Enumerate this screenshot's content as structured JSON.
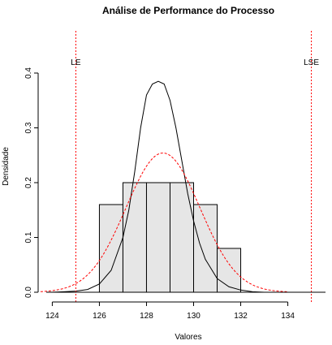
{
  "chart_data": {
    "type": "bar",
    "title": "Análise de Performance do Processo",
    "xlabel": "Valores",
    "ylabel": "Densidade",
    "xlim": [
      123.4,
      135.6
    ],
    "ylim": [
      0,
      0.4
    ],
    "x_ticks": [
      124,
      126,
      128,
      130,
      132,
      134
    ],
    "y_ticks": [
      0.0,
      0.1,
      0.2,
      0.3,
      0.4
    ],
    "x_tick_labels": [
      "124",
      "126",
      "128",
      "130",
      "132",
      "134"
    ],
    "y_tick_labels": [
      "0.0",
      "0.1",
      "0.2",
      "0.3",
      "0.4"
    ],
    "histogram": {
      "bins": [
        [
          126,
          127
        ],
        [
          127,
          128
        ],
        [
          128,
          129
        ],
        [
          129,
          130
        ],
        [
          130,
          131
        ],
        [
          131,
          132
        ]
      ],
      "density": [
        0.16,
        0.2,
        0.2,
        0.2,
        0.16,
        0.08
      ],
      "fill_color": "#e6e6e6",
      "edge_color": "#000000"
    },
    "density_curve": {
      "color": "#000000",
      "x": [
        124.0,
        124.5,
        125.0,
        125.5,
        126.0,
        126.5,
        127.0,
        127.25,
        127.5,
        127.75,
        128.0,
        128.25,
        128.5,
        128.75,
        129.0,
        129.25,
        129.5,
        129.75,
        130.0,
        130.25,
        130.5,
        131.0,
        131.5,
        132.0,
        132.5,
        133.0,
        133.5
      ],
      "y": [
        0.0,
        0.001,
        0.002,
        0.005,
        0.015,
        0.04,
        0.1,
        0.15,
        0.22,
        0.3,
        0.36,
        0.38,
        0.385,
        0.38,
        0.35,
        0.3,
        0.24,
        0.18,
        0.13,
        0.09,
        0.06,
        0.025,
        0.01,
        0.004,
        0.001,
        0.0,
        0.0
      ]
    },
    "normal_curve": {
      "color": "#ff0000",
      "mean": 128.7,
      "sd": 1.57,
      "x_range": [
        123.5,
        134.0
      ]
    },
    "spec_limits": [
      {
        "label": "LE",
        "value": 125.0,
        "color": "#ff0000"
      },
      {
        "label": "LSE",
        "value": 135.0,
        "color": "#ff0000"
      }
    ],
    "grid": false,
    "legend": "none"
  }
}
